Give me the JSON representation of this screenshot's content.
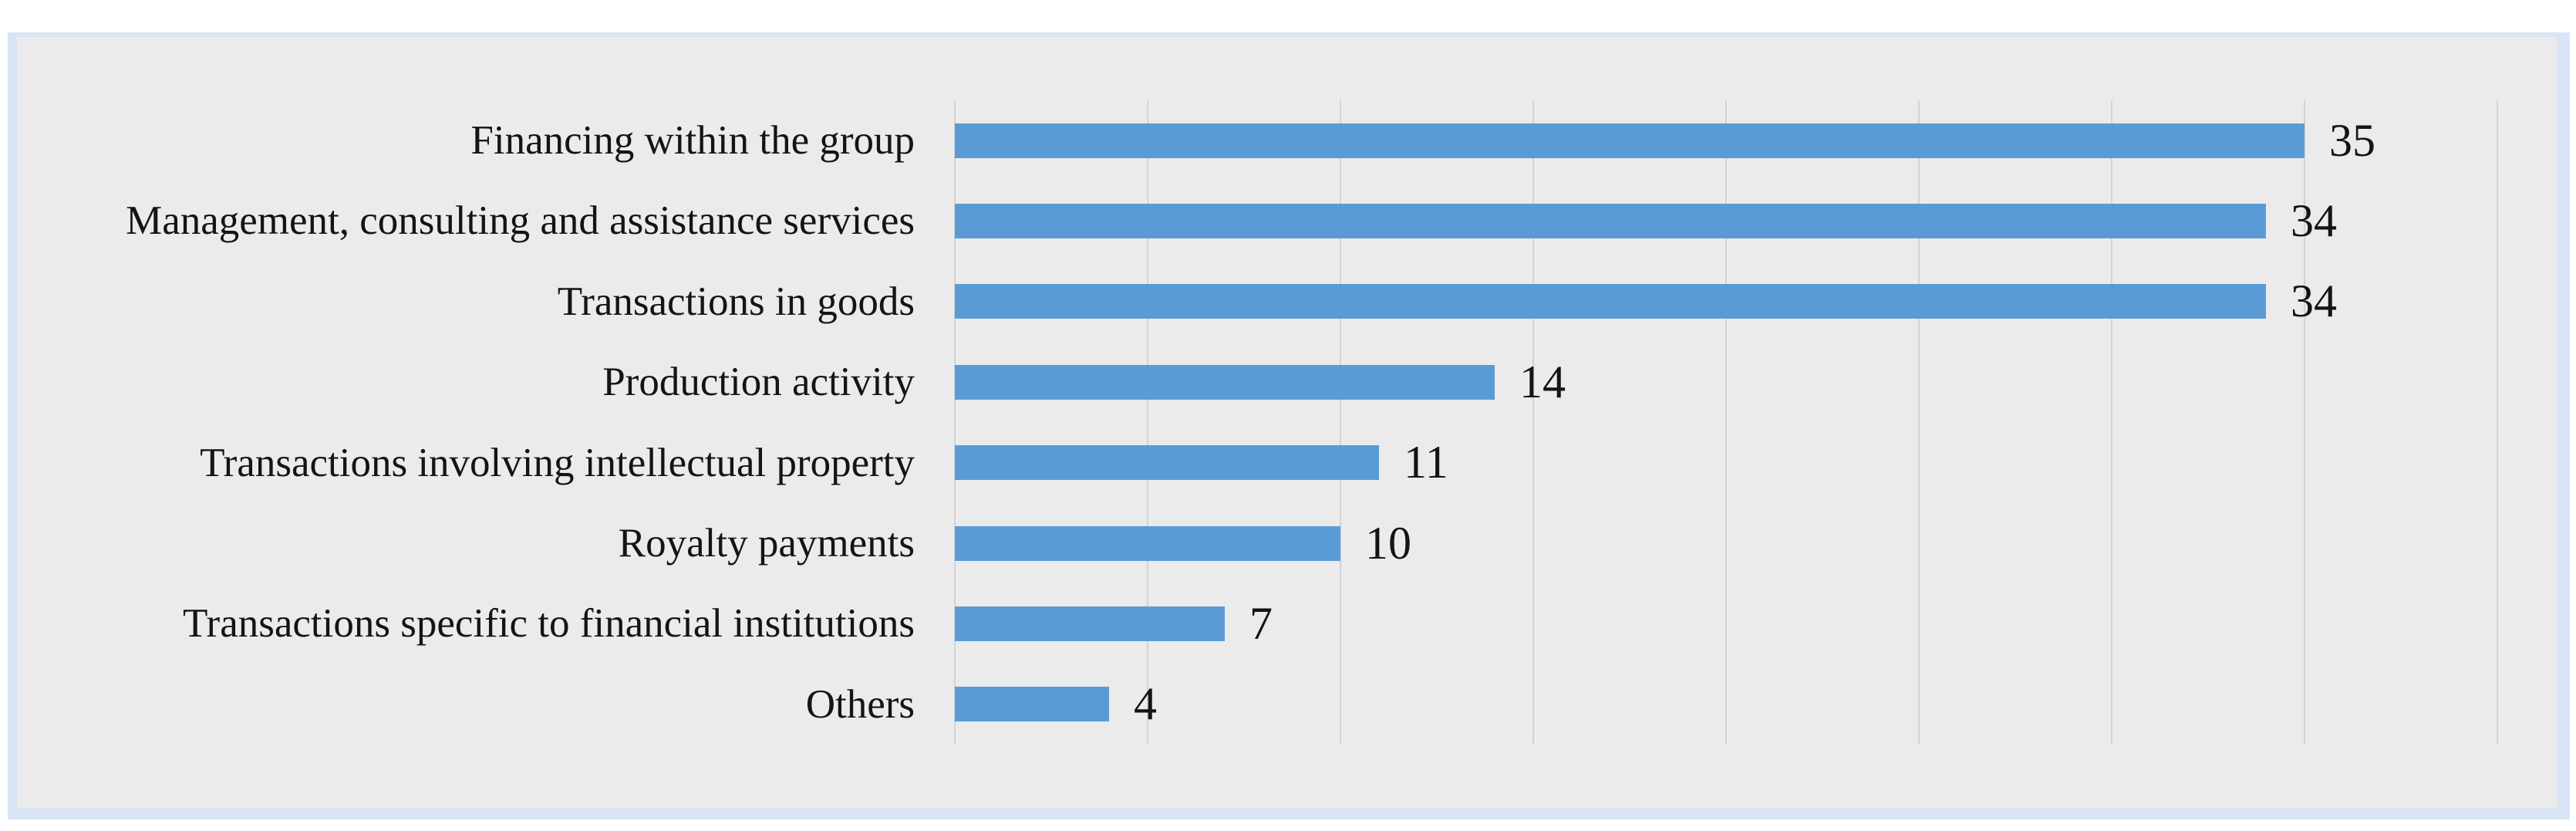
{
  "chart_data": {
    "type": "bar",
    "orientation": "horizontal",
    "title": "",
    "xlabel": "",
    "ylabel": "",
    "categories": [
      "Financing within the group",
      "Management, consulting and assistance services",
      "Transactions in goods",
      "Production activity",
      "Transactions involving intellectual property",
      "Royalty payments",
      "Transactions specific to financial institutions",
      "Others"
    ],
    "values": [
      35,
      34,
      34,
      14,
      11,
      10,
      7,
      4
    ],
    "data_labels": [
      "35",
      "34",
      "34",
      "14",
      "11",
      "10",
      "7",
      "4"
    ],
    "xlim": [
      0,
      40
    ],
    "grid_step": 5,
    "grid": "vertical-only",
    "axis_tick_labels_visible": false,
    "legend_position": "none"
  },
  "style": {
    "bar_color": "#5b9bd5",
    "plot_background": "#ebebeb",
    "panel_border_color": "#d7e5f5",
    "gridline_color": "#d3d3d3",
    "label_color": "#141414",
    "page_background": "#ffffff"
  }
}
